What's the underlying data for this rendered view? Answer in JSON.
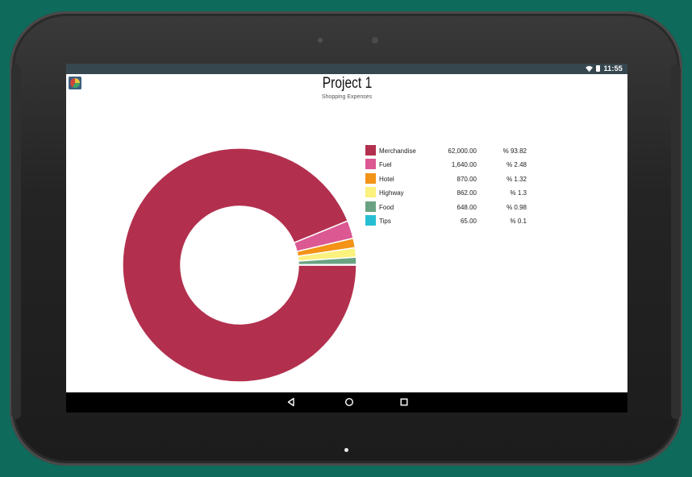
{
  "status_bar": {
    "time": "11:55",
    "icons": [
      "wifi-icon",
      "battery-icon"
    ]
  },
  "app": {
    "icon": "app-pie-chart-icon"
  },
  "header": {
    "title": "Project 1",
    "subtitle": "Shopping Expenses"
  },
  "chart_data": {
    "type": "pie",
    "style": "donut",
    "title": "Project 1",
    "subtitle": "Shopping Expenses",
    "legend_placement": "right",
    "slices": [
      {
        "label": "Merchandise",
        "value": 62000.0,
        "value_text": "62,000.00",
        "percent_text": "% 93.82",
        "color": "#b2304e"
      },
      {
        "label": "Fuel",
        "value": 1640.0,
        "value_text": "1,640.00",
        "percent_text": "% 2.48",
        "color": "#db5893"
      },
      {
        "label": "Hotel",
        "value": 870.0,
        "value_text": "870.00",
        "percent_text": "% 1.32",
        "color": "#f39317"
      },
      {
        "label": "Highway",
        "value": 862.0,
        "value_text": "862.00",
        "percent_text": "% 1.3",
        "color": "#fbf17d"
      },
      {
        "label": "Food",
        "value": 648.0,
        "value_text": "648.00",
        "percent_text": "% 0.98",
        "color": "#6aa383"
      },
      {
        "label": "Tips",
        "value": 65.0,
        "value_text": "65.00",
        "percent_text": "% 0.1",
        "color": "#28bfd3"
      }
    ]
  },
  "nav_bar": {
    "buttons": [
      "back-icon",
      "home-icon",
      "recent-apps-icon"
    ]
  }
}
